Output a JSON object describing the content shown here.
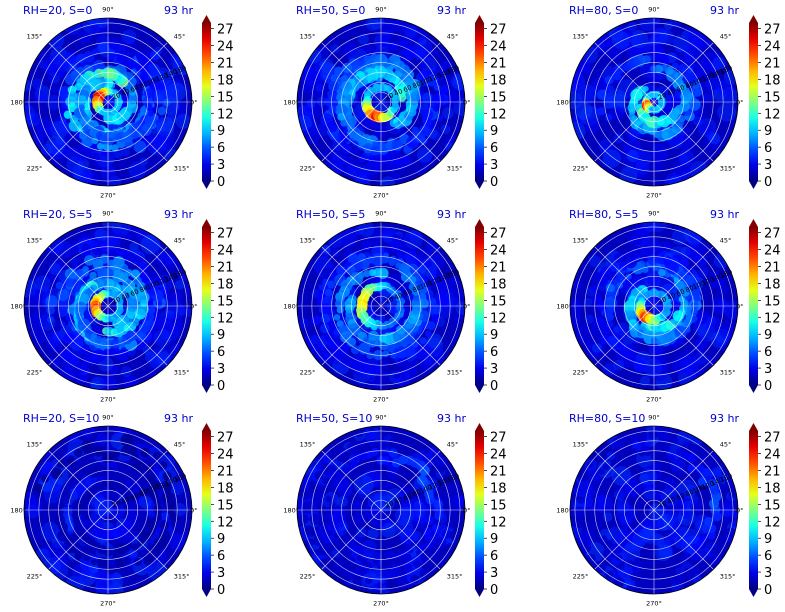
{
  "figure": {
    "angle_labels": [
      "0°",
      "45°",
      "90°",
      "135°",
      "180°",
      "225°",
      "270°",
      "315°"
    ],
    "angle_values": [
      0,
      45,
      90,
      135,
      180,
      225,
      270,
      315
    ],
    "colorbar": {
      "ticks": [
        "0",
        "3",
        "6",
        "9",
        "12",
        "15",
        "18",
        "21",
        "24",
        "27"
      ],
      "cmap": "jet"
    }
  },
  "chart_data": [
    {
      "type": "polar-heatmap",
      "title": "RH=20, S=0",
      "time": "93 hr",
      "rticks": [
        "20",
        "40",
        "60",
        "80",
        "100",
        "120",
        "140",
        "160"
      ],
      "rmax": 170,
      "clim": [
        0,
        28
      ],
      "field": {
        "ring_radius": 22,
        "ring_peak": 27,
        "hot_angle": 160,
        "spread": 85,
        "bands": 5,
        "seed": 11
      }
    },
    {
      "type": "polar-heatmap",
      "title": "RH=50, S=0",
      "time": "93 hr",
      "rticks": [
        "20",
        "40",
        "60",
        "80",
        "100",
        "120",
        "140",
        "160"
      ],
      "rmax": 170,
      "clim": [
        0,
        28
      ],
      "field": {
        "ring_radius": 30,
        "ring_peak": 26,
        "hot_angle": 250,
        "spread": 90,
        "bands": 5,
        "seed": 23
      }
    },
    {
      "type": "polar-heatmap",
      "title": "RH=80, S=0",
      "time": "93 hr",
      "rticks": [
        "20",
        "40",
        "60",
        "80",
        "100",
        "120",
        "140",
        "160"
      ],
      "rmax": 170,
      "clim": [
        0,
        28
      ],
      "field": {
        "ring_radius": 16,
        "ring_peak": 27,
        "hot_angle": 210,
        "spread": 45,
        "bands": 2,
        "seed": 37
      }
    },
    {
      "type": "polar-heatmap",
      "title": "RH=20, S=5",
      "time": "93 hr",
      "rticks": [
        "20",
        "40",
        "60",
        "80",
        "100",
        "120",
        "140",
        "160"
      ],
      "rmax": 170,
      "clim": [
        0,
        28
      ],
      "field": {
        "ring_radius": 25,
        "ring_peak": 25,
        "hot_angle": 185,
        "spread": 95,
        "bands": 5,
        "seed": 41
      }
    },
    {
      "type": "polar-heatmap",
      "title": "RH=50, S=5",
      "time": "93 hr",
      "rticks": [
        "20",
        "40",
        "60",
        "80",
        "100",
        "120",
        "140",
        "160"
      ],
      "rmax": 170,
      "clim": [
        0,
        28
      ],
      "field": {
        "ring_radius": 40,
        "ring_peak": 20,
        "hot_angle": 170,
        "spread": 110,
        "bands": 4,
        "seed": 53
      }
    },
    {
      "type": "polar-heatmap",
      "title": "RH=80, S=5",
      "time": "93 hr",
      "rticks": [
        "20",
        "40",
        "60",
        "80",
        "100",
        "120",
        "140",
        "160"
      ],
      "rmax": 170,
      "clim": [
        0,
        28
      ],
      "field": {
        "ring_radius": 28,
        "ring_peak": 24,
        "hot_angle": 235,
        "spread": 85,
        "bands": 5,
        "seed": 67
      }
    },
    {
      "type": "polar-heatmap",
      "title": "RH=20, S=10",
      "time": "93 hr",
      "rticks": [
        "20",
        "40",
        "60",
        "80",
        "100",
        "120",
        "140",
        "160"
      ],
      "rmax": 170,
      "clim": [
        0,
        28
      ],
      "field": {
        "ring_radius": 50,
        "ring_peak": 4,
        "hot_angle": 290,
        "spread": 110,
        "bands": 2,
        "seed": 71
      }
    },
    {
      "type": "polar-heatmap",
      "title": "RH=50, S=10",
      "time": "93 hr",
      "rticks": [
        "20",
        "40",
        "60",
        "80",
        "100",
        "120",
        "140",
        "160"
      ],
      "rmax": 170,
      "clim": [
        0,
        28
      ],
      "field": {
        "ring_radius": 110,
        "ring_peak": 6,
        "hot_angle": 40,
        "spread": 110,
        "bands": 3,
        "seed": 83
      }
    },
    {
      "type": "polar-heatmap",
      "title": "RH=80, S=10",
      "time": "93 hr",
      "rticks": [
        "20",
        "40",
        "60",
        "80",
        "100",
        "120",
        "140",
        "160"
      ],
      "rmax": 170,
      "clim": [
        0,
        28
      ],
      "field": {
        "ring_radius": 120,
        "ring_peak": 6,
        "hot_angle": 10,
        "spread": 75,
        "bands": 3,
        "seed": 97
      }
    }
  ]
}
